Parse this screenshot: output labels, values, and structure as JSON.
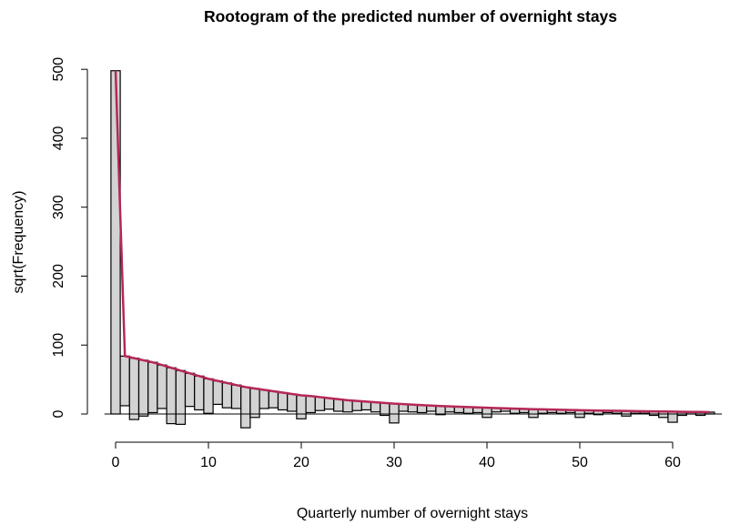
{
  "chart_data": {
    "type": "rootogram",
    "title": "Rootogram of the predicted number of overnight stays",
    "xlabel": "Quarterly number of overnight stays",
    "ylabel": "sqrt(Frequency)",
    "xlim": [
      -1,
      65
    ],
    "ylim": [
      -20,
      500
    ],
    "x_ticks": [
      0,
      10,
      20,
      30,
      40,
      50,
      60
    ],
    "y_ticks": [
      0,
      100,
      200,
      300,
      400,
      500
    ],
    "bar_color": "#d3d3d3",
    "line_color": "#b5275a",
    "x": [
      0,
      1,
      2,
      3,
      4,
      5,
      6,
      7,
      8,
      9,
      10,
      11,
      12,
      13,
      14,
      15,
      16,
      17,
      18,
      19,
      20,
      21,
      22,
      23,
      24,
      25,
      26,
      27,
      28,
      29,
      30,
      31,
      32,
      33,
      34,
      35,
      36,
      37,
      38,
      39,
      40,
      41,
      42,
      43,
      44,
      45,
      46,
      47,
      48,
      49,
      50,
      51,
      52,
      53,
      54,
      55,
      56,
      57,
      58,
      59,
      60,
      61,
      62,
      63,
      64
    ],
    "expected": [
      498,
      84,
      81,
      78,
      75,
      71,
      67,
      63,
      59,
      55,
      51,
      48,
      45,
      42,
      39,
      37,
      35,
      33,
      31,
      29,
      27,
      26,
      24.5,
      23,
      21.5,
      20,
      19,
      18,
      17,
      16,
      15,
      14.3,
      13.6,
      12.9,
      12.2,
      11.5,
      11,
      10.5,
      10,
      9.5,
      9,
      8.6,
      8.2,
      7.8,
      7.4,
      7,
      6.7,
      6.4,
      6.1,
      5.8,
      5.5,
      5.2,
      5,
      4.8,
      4.6,
      4.4,
      4.2,
      4,
      3.8,
      3.6,
      3.4,
      3.2,
      3,
      2.9,
      2.7
    ],
    "bar_bottom": [
      0,
      12,
      -8,
      -3,
      2,
      8,
      -14,
      -15,
      11,
      6,
      1,
      14,
      9,
      8,
      -20,
      -5,
      8,
      9,
      6,
      4,
      -7,
      2,
      5,
      7,
      4,
      3,
      5,
      6,
      3,
      -2,
      -13,
      4,
      3,
      2,
      4,
      -1,
      3,
      2,
      1,
      2,
      -5,
      3,
      4,
      1,
      2,
      -5,
      1,
      2,
      1,
      2,
      -5,
      1,
      -1,
      2,
      1,
      -3,
      1,
      1,
      -2,
      -5,
      -12,
      -2,
      0,
      -2,
      0
    ]
  }
}
